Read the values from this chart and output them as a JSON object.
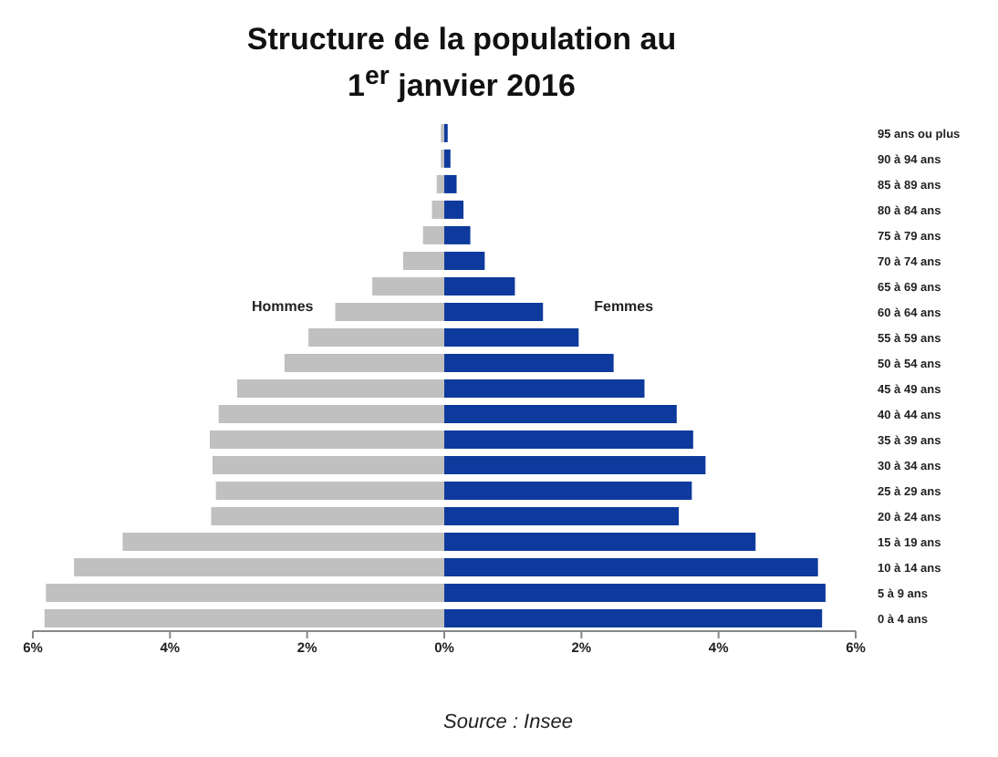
{
  "chart_data": {
    "type": "bar",
    "orientation": "horizontal",
    "stacked": true,
    "title": "Structure de la population au 1$^{er}$ janvier 2016",
    "categories": [
      "95 ans ou plus",
      "90 à 94 ans",
      "85 à 89 ans",
      "80 à 84 ans",
      "75 à 79 ans",
      "70 à 74 ans",
      "65 à 69 ans",
      "60 à 64 ans",
      "55 à 59 ans",
      "50 à 54 ans",
      "45 à 49 ans",
      "40 à 44 ans",
      "35 à 39 ans",
      "30 à 34 ans",
      "25 à 29 ans",
      "20 à 24 ans",
      "15 à 19 ans",
      "10 à 14 ans",
      "5 à 9 ans",
      "0 à 4 ans"
    ],
    "series": [
      {
        "name": "Hommes",
        "color": "#c0c0c0",
        "values": [
          -0.05,
          -0.05,
          -0.11,
          -0.18,
          -0.31,
          -0.6,
          -1.05,
          -1.59,
          -1.98,
          -2.33,
          -3.02,
          -3.29,
          -3.42,
          -3.38,
          -3.33,
          -3.4,
          -4.69,
          -5.4,
          -5.81,
          -5.83
        ]
      },
      {
        "name": "Femmes",
        "color": "#0d3a9c",
        "values": [
          0.05,
          0.09,
          0.18,
          0.28,
          0.38,
          0.59,
          1.03,
          1.44,
          1.96,
          2.47,
          2.92,
          3.39,
          3.63,
          3.81,
          3.61,
          3.42,
          4.54,
          5.45,
          5.56,
          5.51
        ]
      }
    ],
    "xlim": [
      -6,
      6
    ],
    "xticks": [
      {
        "value": -6,
        "label": "6%"
      },
      {
        "value": -4,
        "label": "4%"
      },
      {
        "value": -2,
        "label": "2%"
      },
      {
        "value": 0,
        "label": "0%"
      },
      {
        "value": 2,
        "label": "2%"
      },
      {
        "value": 4,
        "label": "4%"
      },
      {
        "value": 6,
        "label": "6%"
      }
    ],
    "grid": false,
    "legend": false,
    "annotations": [
      "Source : Insee"
    ]
  }
}
